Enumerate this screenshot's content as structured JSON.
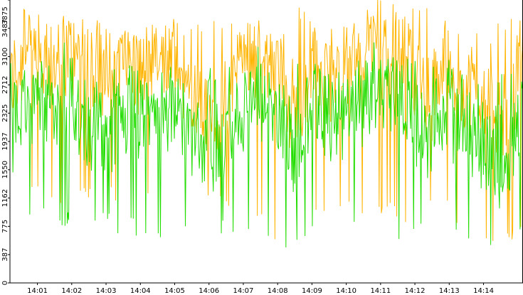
{
  "chart_data": {
    "type": "line",
    "title": "",
    "xlabel": "",
    "ylabel": "",
    "ylim": [
      0,
      3875
    ],
    "y_ticks": [
      "0",
      "387",
      "775",
      "1162",
      "1550",
      "1937",
      "2325",
      "2712",
      "3100",
      "3487",
      "3875"
    ],
    "x_ticks": [
      "14:01",
      "14:02",
      "14:03",
      "14:04",
      "14:05",
      "14:06",
      "14:07",
      "14:08",
      "14:09",
      "14:10",
      "14:11",
      "14:12",
      "14:13",
      "14:14"
    ],
    "x_range_minutes": [
      0.2,
      15.15
    ],
    "samples_per_series": 700,
    "grid": false,
    "legend": "none",
    "series": [
      {
        "color": "#ffb400",
        "envelope": [
          2750,
          3150,
          2950,
          3200,
          2800,
          2700,
          3050,
          2900,
          3000,
          2850,
          2400,
          2200,
          3050,
          3200,
          2900,
          2400,
          3000,
          2750,
          3000,
          3300,
          3450,
          3050,
          2500,
          3050,
          2700,
          2650,
          2200,
          3100
        ],
        "peaks": [
          3875,
          3700,
          3650,
          3600,
          3620,
          3610,
          3620,
          3280,
          3840,
          3600,
          3500,
          3870,
          3780,
          3500,
          3700
        ],
        "troughs": [
          1250,
          1100,
          1050,
          1000,
          900,
          950,
          800,
          420,
          900,
          850,
          800,
          950,
          350,
          500
        ]
      },
      {
        "color": "#22dd00",
        "envelope": [
          2150,
          2550,
          2300,
          2650,
          2200,
          2050,
          2350,
          2250,
          2450,
          2300,
          1850,
          1750,
          2350,
          2550,
          2250,
          1750,
          2450,
          2150,
          2350,
          2650,
          2700,
          2450,
          1950,
          2400,
          2150,
          1950,
          1550,
          2350
        ],
        "peaks": [
          3200,
          3100,
          3050,
          3050,
          3000,
          2950,
          3000,
          2700,
          3100,
          2950,
          2900,
          3150,
          3100,
          2800,
          2950
        ],
        "troughs": [
          750,
          720,
          700,
          650,
          620,
          660,
          550,
          350,
          600,
          580,
          560,
          650,
          420,
          700
        ]
      }
    ]
  }
}
